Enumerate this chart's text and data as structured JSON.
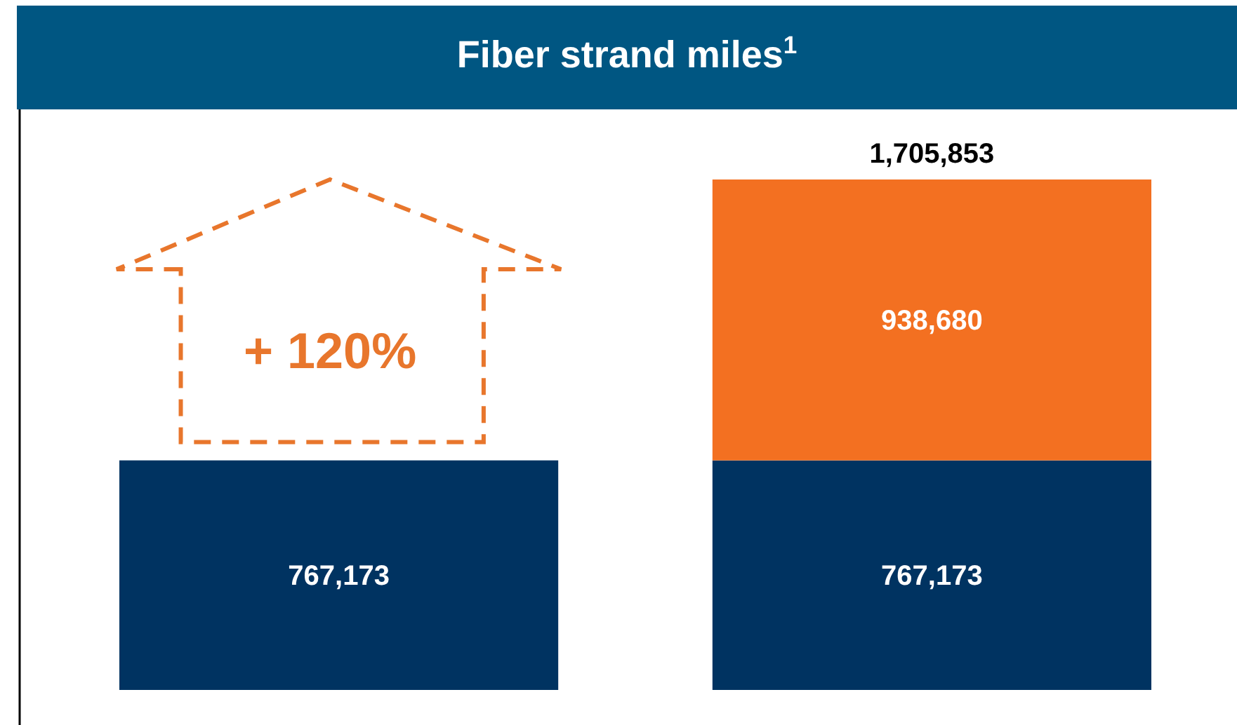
{
  "chart_data": {
    "type": "bar",
    "title": "Fiber strand miles$^{1}$",
    "categories": [
      null,
      null
    ],
    "stacked": true,
    "data_labels": true,
    "totals": [
      null,
      "1,705,853"
    ],
    "series": [
      {
        "color": "#003361",
        "values": [
          767173,
          767173
        ],
        "value_labels": [
          "767,173",
          "767,173"
        ]
      },
      {
        "color": "#f37021",
        "values": [
          null,
          938680
        ],
        "value_labels": [
          null,
          "938,680"
        ]
      }
    ],
    "annotations": [
      "+ 120%"
    ]
  }
}
